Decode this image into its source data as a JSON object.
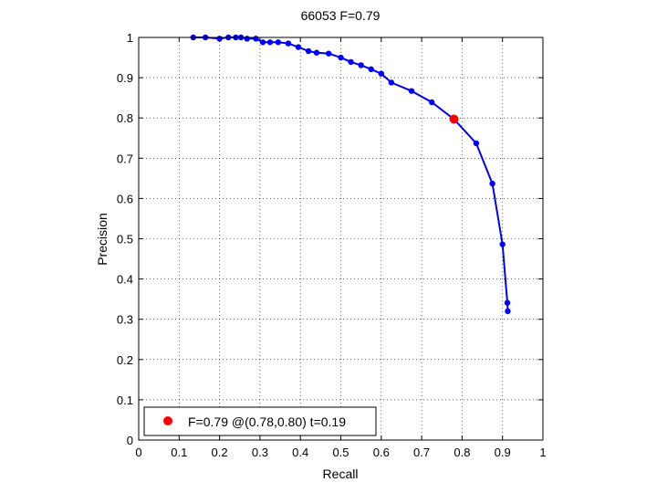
{
  "chart_data": {
    "type": "line",
    "title": "66053 F=0.79",
    "xlabel": "Recall",
    "ylabel": "Precision",
    "xlim": [
      0,
      1
    ],
    "ylim": [
      0,
      1
    ],
    "xticks": [
      "0",
      "0.1",
      "0.2",
      "0.3",
      "0.4",
      "0.5",
      "0.6",
      "0.7",
      "0.8",
      "0.9",
      "1"
    ],
    "yticks": [
      "0",
      "0.1",
      "0.2",
      "0.3",
      "0.4",
      "0.5",
      "0.6",
      "0.7",
      "0.8",
      "0.9",
      "1"
    ],
    "grid": true,
    "series": [
      {
        "color": "#0000ff",
        "x": [
          0.135,
          0.165,
          0.2,
          0.222,
          0.24,
          0.253,
          0.268,
          0.29,
          0.307,
          0.325,
          0.345,
          0.37,
          0.395,
          0.42,
          0.44,
          0.47,
          0.5,
          0.525,
          0.55,
          0.575,
          0.6,
          0.625,
          0.675,
          0.725,
          0.78,
          0.835,
          0.875,
          0.9,
          0.912,
          0.913
        ],
        "y": [
          1.0,
          1.0,
          0.997,
          1.0,
          1.0,
          1.0,
          0.997,
          0.997,
          0.988,
          0.988,
          0.988,
          0.985,
          0.976,
          0.966,
          0.962,
          0.96,
          0.95,
          0.939,
          0.931,
          0.921,
          0.91,
          0.888,
          0.867,
          0.839,
          0.797,
          0.737,
          0.637,
          0.486,
          0.341,
          0.32
        ]
      }
    ],
    "highlight": {
      "x": 0.78,
      "y": 0.797,
      "color": "#ff0000"
    },
    "legend": {
      "position": "bottom-left",
      "text": "F=0.79 @(0.78,0.80) t=0.19"
    }
  }
}
